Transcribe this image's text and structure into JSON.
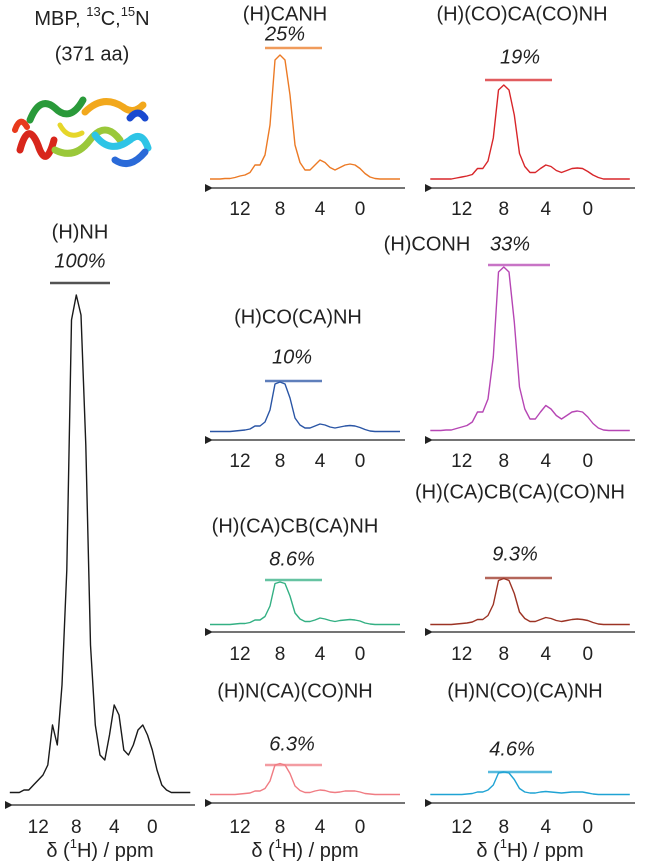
{
  "header": {
    "parts": [
      "MBP, ",
      "13",
      "C,",
      "15",
      "N"
    ],
    "subtitle": "(371 aa)"
  },
  "chart_data": [
    {
      "type": "line",
      "title": "(H)NH",
      "annotation": "100%",
      "color": "#1a1a1a",
      "xlim": [
        15.5,
        -4.5
      ],
      "xticks": [
        12,
        8,
        4,
        0
      ],
      "ylim": [
        0,
        100
      ],
      "xlabel": [
        "δ (",
        "1",
        "H) / ppm"
      ],
      "x": [
        15,
        14.5,
        14,
        13.5,
        13,
        12.5,
        12,
        11.5,
        11,
        10.5,
        10,
        9.5,
        9,
        8.5,
        8,
        7.5,
        7,
        6.5,
        6,
        5.5,
        5,
        4.5,
        4,
        3.5,
        3,
        2.5,
        2,
        1.5,
        1,
        0.5,
        0,
        -0.5,
        -1,
        -1.5,
        -2,
        -2.5,
        -3,
        -3.5,
        -4
      ],
      "values": [
        0.5,
        0.5,
        0.5,
        1,
        1,
        2,
        3,
        4,
        6,
        14,
        10,
        22,
        45,
        95,
        100,
        96,
        70,
        30,
        14,
        8,
        7,
        12,
        18,
        16,
        9,
        8,
        10,
        13,
        14,
        12,
        9,
        5,
        2,
        1,
        0.5,
        0.5,
        0.5,
        0.5,
        0.5
      ]
    },
    {
      "type": "line",
      "title": "(H)CANH",
      "annotation": "25%",
      "color": "#ec7a25",
      "xlim": [
        15.5,
        -4.5
      ],
      "xticks": [
        12,
        8,
        4,
        0
      ],
      "ylim": [
        0,
        100
      ],
      "x": [
        15,
        14.5,
        14,
        13.5,
        13,
        12.5,
        12,
        11.5,
        11,
        10.5,
        10,
        9.5,
        9,
        8.5,
        8,
        7.5,
        7,
        6.5,
        6,
        5.5,
        5,
        4.5,
        4,
        3.5,
        3,
        2.5,
        2,
        1.5,
        1,
        0.5,
        0,
        -0.5,
        -1,
        -1.5,
        -2,
        -2.5,
        -3,
        -3.5,
        -4
      ],
      "values": [
        0.2,
        0.2,
        0.2,
        0.3,
        0.3,
        0.5,
        0.8,
        1,
        1.5,
        3,
        3,
        5,
        11,
        24,
        25,
        24,
        17,
        7,
        3.5,
        2,
        2,
        3,
        4,
        3.5,
        2.5,
        2,
        2.5,
        3,
        3.2,
        3,
        2.3,
        1.3,
        0.6,
        0.3,
        0.2,
        0.2,
        0.2,
        0.2,
        0.2
      ]
    },
    {
      "type": "line",
      "title": "(H)(CO)CA(CO)NH",
      "annotation": "19%",
      "color": "#d8262a",
      "xlim": [
        15.5,
        -4.5
      ],
      "xticks": [
        12,
        8,
        4,
        0
      ],
      "ylim": [
        0,
        100
      ],
      "x": [
        15,
        14.5,
        14,
        13.5,
        13,
        12.5,
        12,
        11.5,
        11,
        10.5,
        10,
        9.5,
        9,
        8.5,
        8,
        7.5,
        7,
        6.5,
        6,
        5.5,
        5,
        4.5,
        4,
        3.5,
        3,
        2.5,
        2,
        1.5,
        1,
        0.5,
        0,
        -0.5,
        -1,
        -1.5,
        -2,
        -2.5,
        -3,
        -3.5,
        -4
      ],
      "values": [
        0.2,
        0.2,
        0.2,
        0.2,
        0.2,
        0.4,
        0.6,
        0.8,
        1.1,
        2.3,
        2.3,
        3.8,
        8.4,
        18,
        19,
        18,
        13,
        5.3,
        2.7,
        1.5,
        1.5,
        2.3,
        3,
        2.7,
        1.9,
        1.5,
        1.9,
        2.3,
        2.4,
        2.3,
        1.7,
        1,
        0.5,
        0.2,
        0.2,
        0.2,
        0.2,
        0.2,
        0.2
      ]
    },
    {
      "type": "line",
      "title": "(H)CO(CA)NH",
      "annotation": "10%",
      "color": "#2a55a5",
      "xlim": [
        15.5,
        -4.5
      ],
      "xticks": [
        12,
        8,
        4,
        0
      ],
      "ylim": [
        0,
        100
      ],
      "x": [
        15,
        14.5,
        14,
        13.5,
        13,
        12.5,
        12,
        11.5,
        11,
        10.5,
        10,
        9.5,
        9,
        8.5,
        8,
        7.5,
        7,
        6.5,
        6,
        5.5,
        5,
        4.5,
        4,
        3.5,
        3,
        2.5,
        2,
        1.5,
        1,
        0.5,
        0,
        -0.5,
        -1,
        -1.5,
        -2,
        -2.5,
        -3,
        -3.5,
        -4
      ],
      "values": [
        0.1,
        0.1,
        0.1,
        0.1,
        0.1,
        0.2,
        0.3,
        0.4,
        0.6,
        1.2,
        1.2,
        2,
        4.4,
        9.6,
        10,
        9.6,
        6.8,
        2.8,
        1.4,
        0.8,
        0.8,
        1.2,
        1.6,
        1.4,
        1,
        0.8,
        1,
        1.2,
        1.3,
        1.2,
        0.9,
        0.5,
        0.2,
        0.1,
        0.1,
        0.1,
        0.1,
        0.1,
        0.1
      ]
    },
    {
      "type": "line",
      "title": "(H)CONH",
      "annotation": "33%",
      "color": "#b646b4",
      "xlim": [
        15.5,
        -4.5
      ],
      "xticks": [
        12,
        8,
        4,
        0
      ],
      "ylim": [
        0,
        100
      ],
      "x": [
        15,
        14.5,
        14,
        13.5,
        13,
        12.5,
        12,
        11.5,
        11,
        10.5,
        10,
        9.5,
        9,
        8.5,
        8,
        7.5,
        7,
        6.5,
        6,
        5.5,
        5,
        4.5,
        4,
        3.5,
        3,
        2.5,
        2,
        1.5,
        1,
        0.5,
        0,
        -0.5,
        -1,
        -1.5,
        -2,
        -2.5,
        -3,
        -3.5,
        -4
      ],
      "values": [
        0.3,
        0.3,
        0.3,
        0.4,
        0.4,
        0.7,
        1,
        1.3,
        2,
        4,
        4,
        6.6,
        15,
        32,
        33,
        32,
        22,
        9,
        4.6,
        2.6,
        2.6,
        4,
        5.3,
        4.6,
        3.3,
        2.6,
        3.3,
        4,
        4.2,
        4,
        3,
        1.7,
        0.8,
        0.4,
        0.3,
        0.3,
        0.3,
        0.3,
        0.3
      ]
    },
    {
      "type": "line",
      "title": "(H)(CA)CB(CA)NH",
      "annotation": "8.6%",
      "color": "#33b083",
      "xlim": [
        15.5,
        -4.5
      ],
      "xticks": [
        12,
        8,
        4,
        0
      ],
      "ylim": [
        0,
        100
      ],
      "x": [
        15,
        14.5,
        14,
        13.5,
        13,
        12.5,
        12,
        11.5,
        11,
        10.5,
        10,
        9.5,
        9,
        8.5,
        8,
        7.5,
        7,
        6.5,
        6,
        5.5,
        5,
        4.5,
        4,
        3.5,
        3,
        2.5,
        2,
        1.5,
        1,
        0.5,
        0,
        -0.5,
        -1,
        -1.5,
        -2,
        -2.5,
        -3,
        -3.5,
        -4
      ],
      "values": [
        0.1,
        0.1,
        0.1,
        0.1,
        0.1,
        0.2,
        0.3,
        0.3,
        0.5,
        1,
        1,
        1.7,
        3.8,
        8.3,
        8.6,
        8.3,
        5.8,
        2.4,
        1.2,
        0.7,
        0.7,
        1,
        1.4,
        1.2,
        0.9,
        0.7,
        0.9,
        1,
        1.1,
        1,
        0.8,
        0.4,
        0.2,
        0.1,
        0.1,
        0.1,
        0.1,
        0.1,
        0.1
      ]
    },
    {
      "type": "line",
      "title": "(H)(CA)CB(CA)(CO)NH",
      "annotation": "9.3%",
      "color": "#9c3324",
      "xlim": [
        15.5,
        -4.5
      ],
      "xticks": [
        12,
        8,
        4,
        0
      ],
      "ylim": [
        0,
        100
      ],
      "x": [
        15,
        14.5,
        14,
        13.5,
        13,
        12.5,
        12,
        11.5,
        11,
        10.5,
        10,
        9.5,
        9,
        8.5,
        8,
        7.5,
        7,
        6.5,
        6,
        5.5,
        5,
        4.5,
        4,
        3.5,
        3,
        2.5,
        2,
        1.5,
        1,
        0.5,
        0,
        -0.5,
        -1,
        -1.5,
        -2,
        -2.5,
        -3,
        -3.5,
        -4
      ],
      "values": [
        0.1,
        0.1,
        0.1,
        0.1,
        0.1,
        0.2,
        0.3,
        0.4,
        0.6,
        1.1,
        1.1,
        1.9,
        4.1,
        8.9,
        9.3,
        8.9,
        6.3,
        2.6,
        1.3,
        0.7,
        0.7,
        1.1,
        1.5,
        1.3,
        0.9,
        0.7,
        0.9,
        1.1,
        1.2,
        1.1,
        0.9,
        0.5,
        0.2,
        0.1,
        0.1,
        0.1,
        0.1,
        0.1,
        0.1
      ]
    },
    {
      "type": "line",
      "title": "(H)N(CA)(CO)NH",
      "annotation": "6.3%",
      "color": "#f07c83",
      "xlim": [
        15.5,
        -4.5
      ],
      "xticks": [
        12,
        8,
        4,
        0
      ],
      "ylim": [
        0,
        100
      ],
      "xlabel": [
        "δ (",
        "1",
        "H) / ppm"
      ],
      "x": [
        15,
        14.5,
        14,
        13.5,
        13,
        12.5,
        12,
        11.5,
        11,
        10.5,
        10,
        9.5,
        9,
        8.5,
        8,
        7.5,
        7,
        6.5,
        6,
        5.5,
        5,
        4.5,
        4,
        3.5,
        3,
        2.5,
        2,
        1.5,
        1,
        0.5,
        0,
        -0.5,
        -1,
        -1.5,
        -2,
        -2.5,
        -3,
        -3.5,
        -4
      ],
      "values": [
        0.1,
        0.1,
        0.1,
        0.1,
        0.1,
        0.1,
        0.2,
        0.3,
        0.4,
        0.8,
        0.8,
        1.3,
        2.8,
        6,
        6.3,
        6,
        4.3,
        1.8,
        0.9,
        0.5,
        0.5,
        0.8,
        1,
        0.9,
        0.6,
        0.5,
        0.6,
        0.8,
        0.8,
        0.8,
        0.6,
        0.3,
        0.2,
        0.1,
        0.1,
        0.1,
        0.1,
        0.1,
        0.1
      ]
    },
    {
      "type": "line",
      "title": "(H)N(CO)(CA)NH",
      "annotation": "4.6%",
      "color": "#1fa3d4",
      "xlim": [
        15.5,
        -4.5
      ],
      "xticks": [
        12,
        8,
        4,
        0
      ],
      "ylim": [
        0,
        100
      ],
      "xlabel": [
        "δ (",
        "1",
        "H) / ppm"
      ],
      "x": [
        15,
        14.5,
        14,
        13.5,
        13,
        12.5,
        12,
        11.5,
        11,
        10.5,
        10,
        9.5,
        9,
        8.5,
        8,
        7.5,
        7,
        6.5,
        6,
        5.5,
        5,
        4.5,
        4,
        3.5,
        3,
        2.5,
        2,
        1.5,
        1,
        0.5,
        0,
        -0.5,
        -1,
        -1.5,
        -2,
        -2.5,
        -3,
        -3.5,
        -4
      ],
      "values": [
        0.1,
        0.1,
        0.1,
        0.1,
        0.1,
        0.1,
        0.1,
        0.2,
        0.3,
        0.6,
        0.6,
        1,
        2,
        4.4,
        4.6,
        4.4,
        3.1,
        1.3,
        0.6,
        0.4,
        0.4,
        0.6,
        0.7,
        0.6,
        0.5,
        0.4,
        0.5,
        0.6,
        0.6,
        0.6,
        0.4,
        0.2,
        0.1,
        0.1,
        0.1,
        0.1,
        0.1,
        0.1,
        0.1
      ]
    }
  ]
}
